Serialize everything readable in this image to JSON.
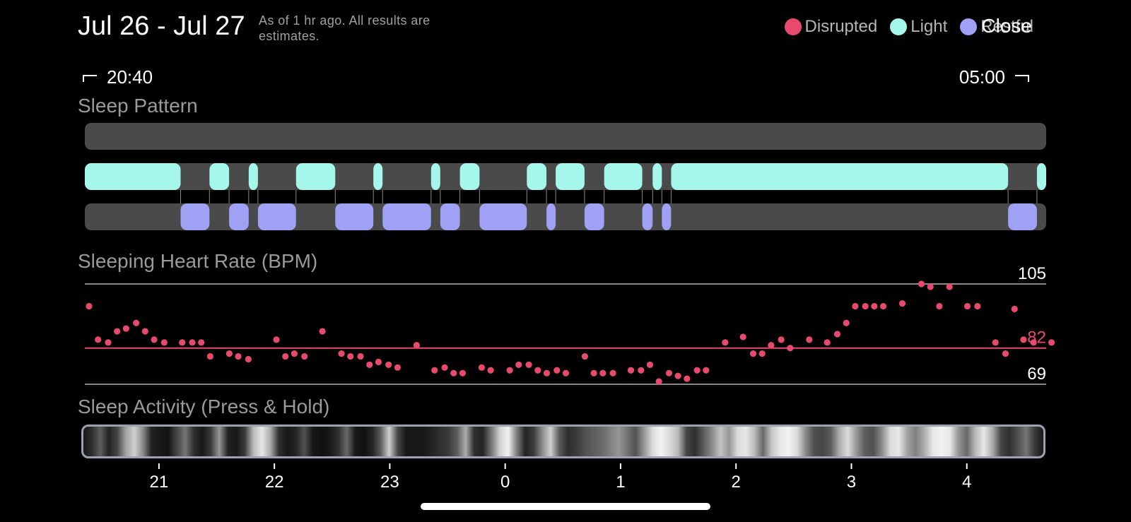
{
  "header": {
    "title": "Jul 26 - Jul 27",
    "subtitle": "As of 1 hr ago. All results are estimates.",
    "close_label": "Close"
  },
  "legend": [
    {
      "label": "Disrupted",
      "color": "#e84a6e"
    },
    {
      "label": "Light",
      "color": "#a4f7ea"
    },
    {
      "label": "Restful",
      "color": "#9ea1f4"
    }
  ],
  "time_range": {
    "start": "20:40",
    "end": "05:00"
  },
  "sections": {
    "sleep_pattern": "Sleep Pattern",
    "heart_rate": "Sleeping Heart Rate (BPM)",
    "activity": "Sleep Activity (Press & Hold)"
  },
  "colors": {
    "track": "#4a4a4a",
    "disrupted": "#e84a6e",
    "light": "#a4f7ea",
    "restful": "#9ea1f4",
    "grid": "#8a8a8a"
  },
  "chart_data": [
    {
      "type": "timeline",
      "title": "Sleep Pattern",
      "x_unit": "hours since 20:40",
      "x_range": [
        0,
        8.33
      ],
      "rows": [
        "Disrupted",
        "Light",
        "Restful"
      ],
      "light": [
        [
          0,
          0.83
        ],
        [
          1.08,
          1.25
        ],
        [
          1.42,
          1.5
        ],
        [
          1.83,
          2.17
        ],
        [
          2.5,
          2.58
        ],
        [
          3.0,
          3.08
        ],
        [
          3.25,
          3.42
        ],
        [
          3.83,
          4.0
        ],
        [
          4.08,
          4.33
        ],
        [
          4.5,
          4.83
        ],
        [
          4.92,
          5.0
        ],
        [
          5.08,
          8.0
        ],
        [
          8.25,
          8.33
        ]
      ],
      "restful": [
        [
          0.83,
          1.08
        ],
        [
          1.25,
          1.42
        ],
        [
          1.5,
          1.83
        ],
        [
          2.17,
          2.5
        ],
        [
          2.58,
          3.0
        ],
        [
          3.08,
          3.25
        ],
        [
          3.42,
          3.83
        ],
        [
          4.0,
          4.08
        ],
        [
          4.33,
          4.5
        ],
        [
          4.83,
          4.92
        ],
        [
          5.0,
          5.08
        ],
        [
          8.0,
          8.25
        ]
      ],
      "disrupted": []
    },
    {
      "type": "scatter",
      "title": "Sleeping Heart Rate (BPM)",
      "x_unit": "hours since 20:40",
      "x_range": [
        0,
        8.33
      ],
      "ylim": [
        69,
        105
      ],
      "reference_lines": [
        {
          "value": 105,
          "label": "105"
        },
        {
          "value": 82,
          "label": "82"
        },
        {
          "value": 69,
          "label": "69"
        }
      ],
      "points": [
        [
          0.0,
          97
        ],
        [
          0.08,
          85
        ],
        [
          0.17,
          84
        ],
        [
          0.25,
          88
        ],
        [
          0.33,
          89
        ],
        [
          0.42,
          91
        ],
        [
          0.5,
          88
        ],
        [
          0.58,
          85
        ],
        [
          0.67,
          84
        ],
        [
          0.83,
          84
        ],
        [
          0.92,
          84
        ],
        [
          1.0,
          84
        ],
        [
          1.08,
          79
        ],
        [
          1.25,
          80
        ],
        [
          1.33,
          79
        ],
        [
          1.42,
          78
        ],
        [
          1.67,
          85
        ],
        [
          1.75,
          79
        ],
        [
          1.83,
          80
        ],
        [
          1.92,
          79
        ],
        [
          2.08,
          88
        ],
        [
          2.25,
          80
        ],
        [
          2.33,
          79
        ],
        [
          2.42,
          79
        ],
        [
          2.5,
          76
        ],
        [
          2.58,
          77
        ],
        [
          2.67,
          76
        ],
        [
          2.75,
          75
        ],
        [
          2.92,
          83
        ],
        [
          3.08,
          74
        ],
        [
          3.17,
          75
        ],
        [
          3.25,
          73
        ],
        [
          3.33,
          73
        ],
        [
          3.5,
          75
        ],
        [
          3.58,
          74
        ],
        [
          3.75,
          74
        ],
        [
          3.83,
          76
        ],
        [
          3.92,
          76
        ],
        [
          4.0,
          74
        ],
        [
          4.08,
          73
        ],
        [
          4.17,
          74
        ],
        [
          4.25,
          73
        ],
        [
          4.42,
          79
        ],
        [
          4.5,
          73
        ],
        [
          4.58,
          73
        ],
        [
          4.67,
          73
        ],
        [
          4.83,
          74
        ],
        [
          4.92,
          74
        ],
        [
          5.0,
          76
        ],
        [
          5.08,
          70
        ],
        [
          5.17,
          73
        ],
        [
          5.25,
          72
        ],
        [
          5.33,
          71
        ],
        [
          5.42,
          74
        ],
        [
          5.5,
          74
        ],
        [
          5.67,
          84
        ],
        [
          5.83,
          86
        ],
        [
          5.92,
          80
        ],
        [
          6.0,
          80
        ],
        [
          6.08,
          83
        ],
        [
          6.17,
          85
        ],
        [
          6.25,
          82
        ],
        [
          6.42,
          85
        ],
        [
          6.58,
          84
        ],
        [
          6.67,
          87
        ],
        [
          6.75,
          91
        ],
        [
          6.83,
          97
        ],
        [
          6.92,
          97
        ],
        [
          7.0,
          97
        ],
        [
          7.08,
          97
        ],
        [
          7.25,
          98
        ],
        [
          7.42,
          105
        ],
        [
          7.5,
          104
        ],
        [
          7.58,
          97
        ],
        [
          7.67,
          104
        ],
        [
          7.83,
          97
        ],
        [
          7.92,
          97
        ],
        [
          8.08,
          84
        ],
        [
          8.17,
          80
        ],
        [
          8.25,
          96
        ],
        [
          8.33,
          85
        ],
        [
          8.42,
          84
        ],
        [
          8.58,
          84
        ]
      ]
    },
    {
      "type": "heatmap",
      "title": "Sleep Activity (Press & Hold)",
      "x_unit": "hours since 20:40",
      "x_range": [
        0,
        8.33
      ],
      "x_tick_labels": [
        "21",
        "22",
        "23",
        "0",
        "1",
        "2",
        "3",
        "4"
      ],
      "x_tick_values": [
        0.33,
        1.33,
        2.33,
        3.33,
        4.33,
        5.33,
        6.33,
        7.33
      ],
      "activity": [
        0.05,
        0.15,
        0.35,
        0.1,
        0.25,
        0.65,
        0.85,
        0.55,
        0.1,
        0.05,
        0.03,
        0.25,
        0.45,
        0.15,
        0.05,
        0.2,
        0.6,
        0.1,
        0.05,
        0.2,
        0.75,
        0.95,
        0.7,
        0.15,
        0.05,
        0.1,
        0.3,
        0.05,
        0.02,
        0.05,
        0.15,
        0.4,
        0.05,
        0.02,
        0.1,
        0.35,
        0.85,
        0.25,
        0.05,
        0.05,
        0.05,
        0.1,
        0.15,
        0.2,
        0.35,
        0.7,
        0.15,
        0.1,
        0.45,
        0.85,
        1.0,
        0.5,
        0.1,
        0.2,
        0.55,
        0.85,
        0.35,
        0.15,
        0.2,
        0.3,
        0.35,
        0.4,
        0.5,
        0.6,
        0.45,
        0.3,
        0.6,
        0.9,
        1.0,
        0.9,
        0.75,
        0.25,
        0.15,
        0.35,
        0.55,
        0.8,
        0.6,
        0.9,
        0.95,
        0.75,
        0.4,
        0.8,
        0.95,
        1.0,
        0.9,
        0.55,
        0.3,
        0.25,
        0.35,
        0.7,
        0.9,
        0.6,
        0.35,
        0.3,
        0.55,
        0.9,
        0.95,
        0.65,
        0.5,
        0.7,
        0.95,
        1.0,
        0.95,
        0.6,
        0.4,
        0.75,
        0.95,
        0.7,
        0.25,
        0.15,
        0.3,
        0.45,
        0.2,
        0.05
      ]
    }
  ]
}
